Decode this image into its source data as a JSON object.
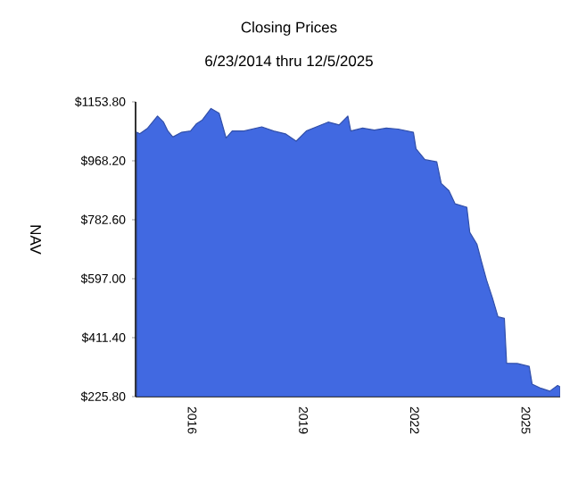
{
  "chart_data": {
    "type": "area",
    "title": "Closing Prices",
    "subtitle": "6/23/2014 thru 12/5/2025",
    "ylabel": "NAV",
    "x": [
      "2014-07-05",
      "2014-08-03",
      "2014-10-20",
      "2015-01-25",
      "2015-03-25",
      "2015-05-07",
      "2015-06-25",
      "2015-09-20",
      "2015-12-16",
      "2016-02-10",
      "2016-04-08",
      "2016-07-05",
      "2016-09-23",
      "2016-12-01",
      "2017-01-30",
      "2017-05-26",
      "2017-11-17",
      "2018-03-14",
      "2018-07-08",
      "2018-10-22",
      "2019-01-30",
      "2019-05-26",
      "2019-09-02",
      "2019-11-17",
      "2019-12-18",
      "2020-03-14",
      "2020-04-12",
      "2020-08-07",
      "2020-12-01",
      "2021-03-28",
      "2021-07-23",
      "2021-12-20",
      "2022-01-15",
      "2022-04-12",
      "2022-08-07",
      "2022-09-20",
      "2022-12-05",
      "2023-02-03",
      "2023-05-30",
      "2023-06-28",
      "2023-09-06",
      "2023-10-23",
      "2023-12-10",
      "2024-02-06",
      "2024-04-01",
      "2024-06-03",
      "2024-06-25",
      "2024-10-08",
      "2025-02-03",
      "2025-03-04",
      "2025-05-30",
      "2025-08-25",
      "2025-11-10",
      "2025-12-05"
    ],
    "values": [
      1058,
      1053,
      1071,
      1109,
      1090,
      1062,
      1043,
      1058,
      1062,
      1084,
      1096,
      1133,
      1118,
      1040,
      1062,
      1062,
      1075,
      1062,
      1053,
      1030,
      1062,
      1077,
      1090,
      1084,
      1081,
      1109,
      1062,
      1071,
      1065,
      1071,
      1068,
      1058,
      1006,
      972,
      965,
      897,
      874,
      833,
      822,
      743,
      706,
      649,
      593,
      537,
      477,
      472,
      331,
      330,
      321,
      265,
      252,
      243,
      261,
      256
    ],
    "color": "#4169e1",
    "xlim": [
      "2014-06-23",
      "2025-12-05"
    ],
    "ylim": [
      225.8,
      1153.8
    ],
    "xticks": [
      {
        "value": "2016-01-01",
        "label": "2016"
      },
      {
        "value": "2019-01-01",
        "label": "2019"
      },
      {
        "value": "2022-01-01",
        "label": "2022"
      },
      {
        "value": "2025-01-01",
        "label": "2025"
      }
    ],
    "yticks": [
      {
        "value": 225.8,
        "label": "$225.80"
      },
      {
        "value": 411.4,
        "label": "$411.40"
      },
      {
        "value": 597.0,
        "label": "$597.00"
      },
      {
        "value": 782.6,
        "label": "$782.60"
      },
      {
        "value": 968.2,
        "label": "$968.20"
      },
      {
        "value": 1153.8,
        "label": "$1153.80"
      }
    ]
  }
}
